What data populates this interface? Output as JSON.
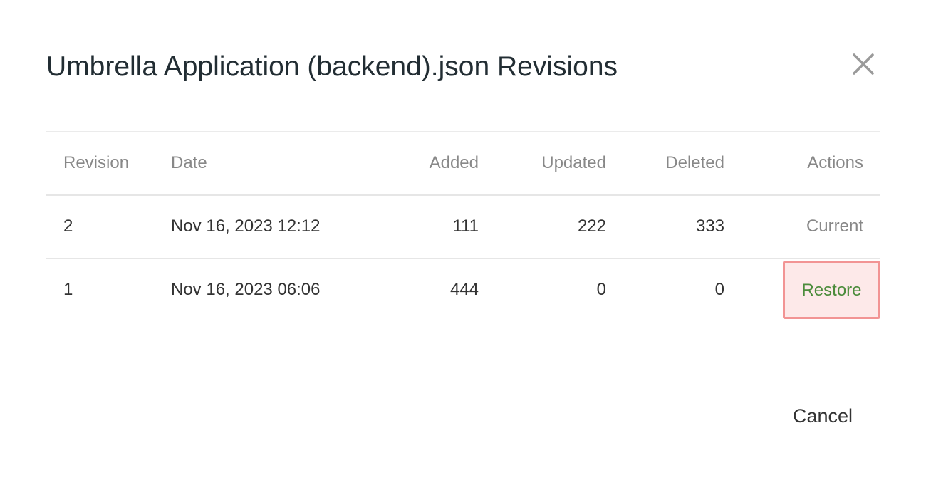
{
  "dialog": {
    "title": "Umbrella Application (backend).json Revisions",
    "close_icon": "close-icon",
    "cancel_label": "Cancel"
  },
  "table": {
    "headers": [
      "Revision",
      "Date",
      "Added",
      "Updated",
      "Deleted",
      "Actions"
    ],
    "rows": [
      {
        "revision": "2",
        "date": "Nov 16, 2023 12:12",
        "added": "111",
        "updated": "222",
        "deleted": "333",
        "action": "Current"
      },
      {
        "revision": "1",
        "date": "Nov 16, 2023 06:06",
        "added": "444",
        "updated": "0",
        "deleted": "0",
        "action": "Restore"
      }
    ]
  },
  "colors": {
    "restore_text": "#4c8c3c",
    "restore_bg": "#fde9e9",
    "restore_border": "#f29494"
  }
}
